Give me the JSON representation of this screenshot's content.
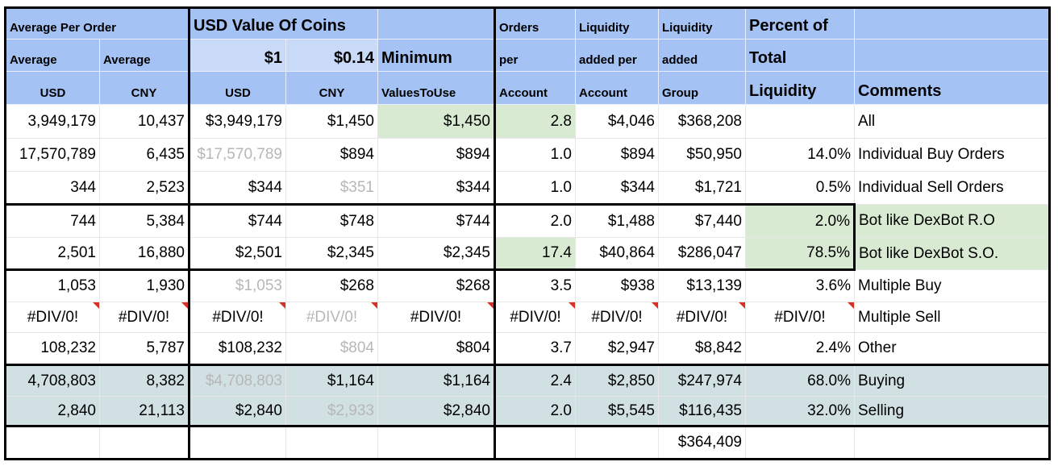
{
  "header": {
    "row1": [
      "Average Per Order",
      "USD Value Of Coins",
      "",
      "Orders",
      "Liquidity",
      "Liquidity",
      "Percent of",
      ""
    ],
    "row2": [
      "Average",
      "Average",
      "$1",
      "$0.14",
      "Minimum",
      "per",
      "added per",
      "added",
      "Total",
      ""
    ],
    "row3": [
      "USD",
      "CNY",
      "USD",
      "CNY",
      "ValuesToUse",
      "Account",
      "Account",
      "Group",
      "Liquidity",
      "Comments"
    ]
  },
  "colors": {
    "header": "#a4c2f4",
    "header_light": "#c9daf8",
    "highlight_green": "#d9ead3",
    "summary_rows": "#d0e0e3",
    "muted_text": "#b7b7b7",
    "error_marker": "#d93025"
  },
  "rows": [
    {
      "cells": [
        "3,949,179",
        "10,437",
        "$3,949,179",
        "$1,450",
        "$1,450",
        "2.8",
        "$4,046",
        "$368,208",
        "",
        "All"
      ],
      "grey": [],
      "green": [
        4,
        5
      ]
    },
    {
      "cells": [
        "17,570,789",
        "6,435",
        "$17,570,789",
        "$894",
        "$894",
        "1.0",
        "$894",
        "$50,950",
        "14.0%",
        "Individual Buy Orders"
      ],
      "grey": [
        2
      ],
      "green": []
    },
    {
      "cells": [
        "344",
        "2,523",
        "$344",
        "$351",
        "$344",
        "1.0",
        "$344",
        "$1,721",
        "0.5%",
        "Individual Sell Orders"
      ],
      "grey": [
        3
      ],
      "green": []
    },
    {
      "cells": [
        "744",
        "5,384",
        "$744",
        "$748",
        "$744",
        "2.0",
        "$1,488",
        "$7,440",
        "2.0%",
        "Bot like DexBot R.O"
      ],
      "grey": [],
      "green": [
        8,
        9
      ]
    },
    {
      "cells": [
        "2,501",
        "16,880",
        "$2,501",
        "$2,345",
        "$2,345",
        "17.4",
        "$40,864",
        "$286,047",
        "78.5%",
        "Bot like DexBot S.O."
      ],
      "grey": [],
      "green": [
        5,
        8,
        9
      ]
    },
    {
      "cells": [
        "1,053",
        "1,930",
        "$1,053",
        "$268",
        "$268",
        "3.5",
        "$938",
        "$13,139",
        "3.6%",
        "Multiple Buy"
      ],
      "grey": [
        2
      ],
      "green": []
    },
    {
      "cells": [
        "#DIV/0!",
        "#DIV/0!",
        "#DIV/0!",
        "#DIV/0!",
        "#DIV/0!",
        "#DIV/0!",
        "#DIV/0!",
        "#DIV/0!",
        "#DIV/0!",
        "Multiple Sell"
      ],
      "grey": [
        3
      ],
      "green": [],
      "error": true
    },
    {
      "cells": [
        "108,232",
        "5,787",
        "$108,232",
        "$804",
        "$804",
        "3.7",
        "$2,947",
        "$8,842",
        "2.4%",
        "Other"
      ],
      "grey": [
        3
      ],
      "green": []
    },
    {
      "cells": [
        "4,708,803",
        "8,382",
        "$4,708,803",
        "$1,164",
        "$1,164",
        "2.4",
        "$2,850",
        "$247,974",
        "68.0%",
        "Buying"
      ],
      "grey": [
        2
      ],
      "green": [],
      "summary": true
    },
    {
      "cells": [
        "2,840",
        "21,113",
        "$2,840",
        "$2,933",
        "$2,840",
        "2.0",
        "$5,545",
        "$116,435",
        "32.0%",
        "Selling"
      ],
      "grey": [
        3
      ],
      "green": [],
      "summary": true
    },
    {
      "cells": [
        "",
        "",
        "",
        "",
        "",
        "",
        "",
        "$364,409",
        "",
        ""
      ],
      "grey": [],
      "green": []
    }
  ]
}
